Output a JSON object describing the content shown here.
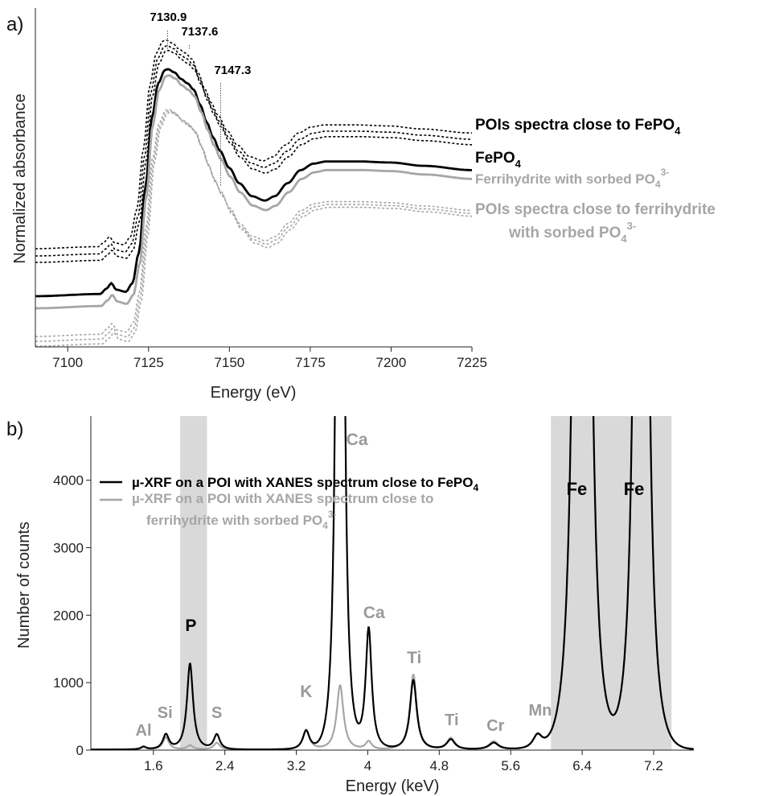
{
  "colors": {
    "black": "#000000",
    "gray": "#a6a6a6",
    "band": "#d9d9d9"
  },
  "chart_data": [
    {
      "type": "line",
      "panel": "a)",
      "xlabel": "Energy (eV)",
      "ylabel": "Normalized absorbance",
      "xlim": [
        7090,
        7225
      ],
      "xticks": [
        7100,
        7125,
        7150,
        7175,
        7200,
        7225
      ],
      "y_tick_labels": "none",
      "peak_annotations": [
        {
          "label": "7130.9",
          "x": 7130.9
        },
        {
          "label": "7137.6",
          "x": 7137.6
        },
        {
          "label": "7147.3",
          "x": 7147.3
        }
      ],
      "series": [
        {
          "name": "POIs spectra close to FePO",
          "sub": "4",
          "color": "black",
          "dash": "dotted",
          "count": 3
        },
        {
          "name": "FePO",
          "sub": "4",
          "color": "black",
          "dash": "solid"
        },
        {
          "name": "Ferrihydrite with sorbed PO",
          "sub": "4",
          "sup": "3-",
          "color": "gray",
          "dash": "solid"
        },
        {
          "name": "POIs spectra close to ferrihydrite",
          "name2": "with sorbed PO",
          "sub": "4",
          "sup": "3-",
          "color": "gray",
          "dash": "dotted",
          "count": 3
        }
      ],
      "curve_points": {
        "x": [
          7090,
          7110,
          7112,
          7113.5,
          7115,
          7118,
          7120,
          7122,
          7124,
          7126,
          7128,
          7130,
          7131,
          7133,
          7135,
          7137,
          7139,
          7141,
          7143,
          7145,
          7147,
          7150,
          7153,
          7157,
          7161,
          7164,
          7168,
          7172,
          7176,
          7180,
          7190,
          7200,
          7210,
          7225
        ],
        "y": [
          0.0,
          0.01,
          0.035,
          0.06,
          0.03,
          0.02,
          0.06,
          0.2,
          0.5,
          0.82,
          0.98,
          1.04,
          1.045,
          1.03,
          1.0,
          0.98,
          0.95,
          0.88,
          0.8,
          0.73,
          0.67,
          0.59,
          0.52,
          0.46,
          0.44,
          0.46,
          0.52,
          0.58,
          0.61,
          0.62,
          0.62,
          0.615,
          0.6,
          0.58
        ]
      }
    },
    {
      "type": "line",
      "panel": "b)",
      "xlabel": "Energy (keV)",
      "ylabel": "Number of counts",
      "xlim": [
        0.9,
        7.65
      ],
      "ylim": [
        0,
        4950
      ],
      "xticks": [
        "1.6",
        "2.4",
        "3.2",
        "4",
        "4.8",
        "5.6",
        "6.4",
        "7.2"
      ],
      "xtick_values": [
        1.6,
        2.4,
        3.2,
        4.0,
        4.8,
        5.6,
        6.4,
        7.2
      ],
      "yticks": [
        0,
        1000,
        2000,
        3000,
        4000
      ],
      "shaded_bands": [
        [
          1.9,
          2.2
        ],
        [
          6.05,
          7.4
        ]
      ],
      "legend": [
        {
          "name": "µ-XRF on a POI with XANES spectrum close to FePO",
          "sub": "4",
          "color": "black"
        },
        {
          "name": "µ-XRF on a POI with XANES spectrum close to",
          "name2": "ferrihydrite with sorbed PO",
          "sub": "4",
          "sup": "3-",
          "color": "gray"
        }
      ],
      "peak_labels": [
        {
          "label": "Al",
          "x": 1.49,
          "y": 40,
          "color": "gray"
        },
        {
          "label": "Si",
          "x": 1.73,
          "y": 230,
          "color": "gray"
        },
        {
          "label": "P",
          "x": 2.02,
          "y": 1280,
          "color": "black"
        },
        {
          "label": "S",
          "x": 2.31,
          "y": 230,
          "color": "gray"
        },
        {
          "label": "K",
          "x": 3.31,
          "y": 300,
          "color": "gray"
        },
        {
          "label": "Ca",
          "x": 3.69,
          "y": 4950,
          "color": "gray"
        },
        {
          "label": "Ca",
          "x": 4.01,
          "y": 1820,
          "color": "gray"
        },
        {
          "label": "Ti",
          "x": 4.51,
          "y": 1100,
          "color": "gray"
        },
        {
          "label": "Ti",
          "x": 4.93,
          "y": 180,
          "color": "gray"
        },
        {
          "label": "Cr",
          "x": 5.41,
          "y": 120,
          "color": "gray"
        },
        {
          "label": "Mn",
          "x": 5.9,
          "y": 220,
          "color": "gray"
        },
        {
          "label": "Fe",
          "x": 6.4,
          "y": 4950,
          "color": "black"
        },
        {
          "label": "Fe",
          "x": 7.06,
          "y": 4950,
          "color": "black"
        }
      ],
      "series": [
        {
          "name": "µ-XRF on a POI with XANES spectrum close to FePO4",
          "color": "black",
          "baseline": 10,
          "peaks": [
            {
              "x": 1.49,
              "h": 40,
              "w": 0.04
            },
            {
              "x": 1.74,
              "h": 220,
              "w": 0.045
            },
            {
              "x": 2.01,
              "h": 1270,
              "w": 0.045
            },
            {
              "x": 2.31,
              "h": 220,
              "w": 0.045
            },
            {
              "x": 3.31,
              "h": 280,
              "w": 0.05
            },
            {
              "x": 3.69,
              "h": 30000,
              "w": 0.03
            },
            {
              "x": 4.01,
              "h": 1790,
              "w": 0.045
            },
            {
              "x": 4.51,
              "h": 1030,
              "w": 0.05
            },
            {
              "x": 4.93,
              "h": 150,
              "w": 0.06
            },
            {
              "x": 5.41,
              "h": 100,
              "w": 0.07
            },
            {
              "x": 5.9,
              "h": 200,
              "w": 0.07
            },
            {
              "x": 6.4,
              "h": 60000,
              "w": 0.045
            },
            {
              "x": 7.06,
              "h": 40000,
              "w": 0.045
            }
          ]
        },
        {
          "name": "µ-XRF on a POI with XANES spectrum close to ferrihydrite with sorbed PO43-",
          "color": "gray",
          "baseline": 10,
          "peaks": [
            {
              "x": 1.49,
              "h": 40,
              "w": 0.04
            },
            {
              "x": 1.74,
              "h": 180,
              "w": 0.045
            },
            {
              "x": 2.01,
              "h": 60,
              "w": 0.045
            },
            {
              "x": 2.31,
              "h": 100,
              "w": 0.045
            },
            {
              "x": 3.31,
              "h": 290,
              "w": 0.05
            },
            {
              "x": 3.69,
              "h": 950,
              "w": 0.05
            },
            {
              "x": 4.01,
              "h": 120,
              "w": 0.045
            },
            {
              "x": 4.51,
              "h": 1110,
              "w": 0.05
            },
            {
              "x": 4.93,
              "h": 170,
              "w": 0.06
            },
            {
              "x": 5.41,
              "h": 120,
              "w": 0.07
            },
            {
              "x": 5.9,
              "h": 210,
              "w": 0.07
            },
            {
              "x": 6.4,
              "h": 60000,
              "w": 0.045
            },
            {
              "x": 7.06,
              "h": 40000,
              "w": 0.045
            }
          ]
        }
      ]
    }
  ]
}
